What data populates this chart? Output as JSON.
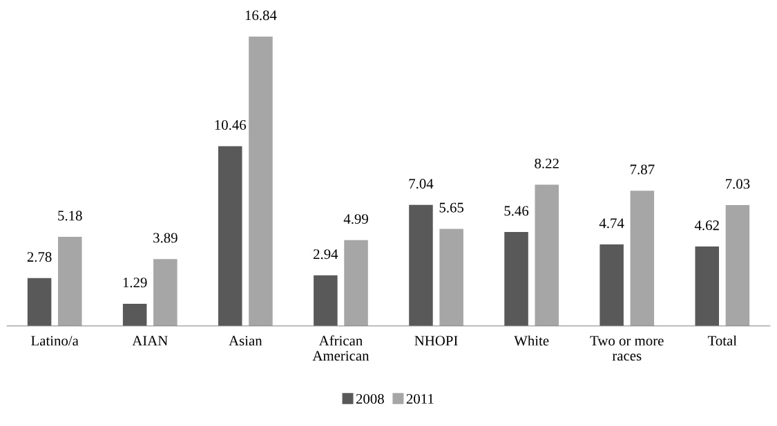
{
  "chart_data": {
    "type": "bar",
    "categories": [
      "Latino/a",
      "AIAN",
      "Asian",
      "African American",
      "NHOPI",
      "White",
      "Two or more races",
      "Total"
    ],
    "series": [
      {
        "name": "2008",
        "color": "#595959",
        "values": [
          2.78,
          1.29,
          10.46,
          2.94,
          7.04,
          5.46,
          4.74,
          4.62
        ]
      },
      {
        "name": "2011",
        "color": "#a6a6a6",
        "values": [
          5.18,
          3.89,
          16.84,
          4.99,
          5.65,
          8.22,
          7.87,
          7.03
        ]
      }
    ],
    "data_labels": true,
    "legend": "bottom",
    "grid": false,
    "tick_labels": "x"
  }
}
